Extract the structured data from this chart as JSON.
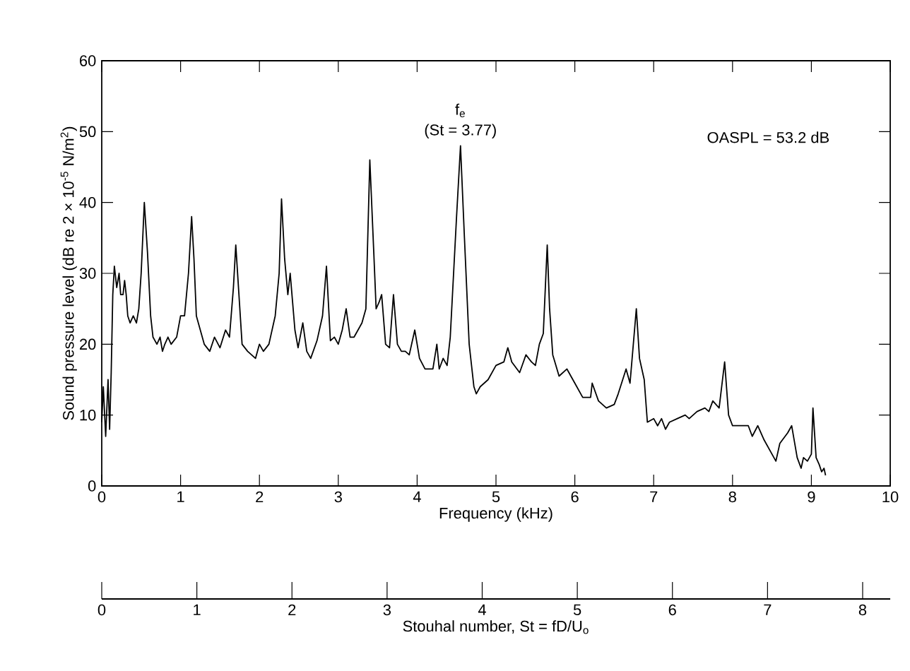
{
  "chart_data": {
    "type": "line",
    "xlabel": "Frequency (kHz)",
    "ylabel": "Sound pressure level (dB re 2 × 10$^{-5}$ N/m$^{2}$)",
    "x2label": "Stouhal number, St = fD/U$_{o}$",
    "xlim": [
      0,
      10
    ],
    "ylim": [
      0,
      60
    ],
    "xticks": [
      0,
      1,
      2,
      3,
      4,
      5,
      6,
      7,
      8,
      9,
      10
    ],
    "yticks": [
      0,
      10,
      20,
      30,
      40,
      50,
      60
    ],
    "x2lim": [
      0,
      8.29
    ],
    "x2ticks": [
      0,
      1,
      2,
      3,
      4,
      5,
      6,
      7,
      8
    ],
    "grid": false,
    "marker": "none",
    "line_style": "solid",
    "annotations": [
      {
        "text": "f$_{e}$",
        "x": 4.55,
        "y": 48
      },
      {
        "text": "(St = 3.77)",
        "x": 4.55,
        "y": 48
      },
      "OASPL = 53.2 dB"
    ],
    "series": [
      {
        "color": "#000000",
        "x": [
          0.0,
          0.02,
          0.05,
          0.08,
          0.1,
          0.12,
          0.14,
          0.16,
          0.19,
          0.22,
          0.24,
          0.27,
          0.29,
          0.31,
          0.33,
          0.36,
          0.4,
          0.44,
          0.47,
          0.5,
          0.54,
          0.58,
          0.62,
          0.65,
          0.7,
          0.74,
          0.77,
          0.8,
          0.84,
          0.88,
          0.95,
          1.0,
          1.05,
          1.1,
          1.14,
          1.17,
          1.2,
          1.25,
          1.3,
          1.37,
          1.43,
          1.5,
          1.57,
          1.62,
          1.67,
          1.7,
          1.74,
          1.78,
          1.85,
          1.95,
          2.0,
          2.05,
          2.12,
          2.2,
          2.25,
          2.28,
          2.32,
          2.36,
          2.39,
          2.42,
          2.45,
          2.49,
          2.55,
          2.6,
          2.65,
          2.73,
          2.8,
          2.85,
          2.9,
          2.95,
          3.0,
          3.05,
          3.1,
          3.15,
          3.2,
          3.3,
          3.35,
          3.4,
          3.45,
          3.48,
          3.52,
          3.55,
          3.6,
          3.65,
          3.7,
          3.75,
          3.8,
          3.85,
          3.9,
          3.97,
          4.03,
          4.1,
          4.2,
          4.25,
          4.28,
          4.33,
          4.38,
          4.42,
          4.5,
          4.55,
          4.6,
          4.66,
          4.72,
          4.75,
          4.8,
          4.9,
          5.0,
          5.1,
          5.15,
          5.2,
          5.3,
          5.38,
          5.45,
          5.5,
          5.55,
          5.6,
          5.65,
          5.68,
          5.72,
          5.8,
          5.9,
          6.0,
          6.1,
          6.2,
          6.22,
          6.3,
          6.4,
          6.5,
          6.55,
          6.65,
          6.7,
          6.78,
          6.82,
          6.88,
          6.92,
          7.0,
          7.05,
          7.1,
          7.15,
          7.2,
          7.3,
          7.4,
          7.45,
          7.55,
          7.65,
          7.7,
          7.75,
          7.83,
          7.9,
          7.95,
          8.0,
          8.1,
          8.2,
          8.25,
          8.32,
          8.4,
          8.5,
          8.55,
          8.6,
          8.7,
          8.75,
          8.82,
          8.87,
          8.9,
          8.95,
          9.0,
          9.02,
          9.06,
          9.1,
          9.13,
          9.16,
          9.18
        ],
        "values": [
          9,
          14,
          7,
          15,
          8,
          16,
          27,
          31,
          28,
          30,
          27,
          27,
          29,
          27,
          24,
          23,
          24,
          23,
          25,
          30,
          40,
          33,
          24,
          21,
          20,
          21,
          19,
          20,
          21,
          20,
          21,
          24,
          24,
          30,
          38,
          32,
          24,
          22,
          20,
          19,
          21,
          19.5,
          22,
          21,
          28,
          34,
          27,
          20,
          19,
          18,
          20,
          19,
          20,
          24,
          30,
          40.5,
          32,
          27,
          30,
          26,
          22,
          19.5,
          23,
          19,
          18,
          20.5,
          24,
          31,
          20.5,
          21,
          20,
          22,
          25,
          21,
          21,
          23,
          25,
          46,
          33,
          25,
          26,
          27,
          20,
          19.5,
          27,
          20,
          19,
          19,
          18.5,
          22,
          18,
          16.5,
          16.5,
          20,
          16.5,
          18,
          17,
          21,
          38,
          48,
          35,
          20,
          14,
          13,
          14,
          15,
          17,
          17.5,
          19.5,
          17.5,
          16,
          18.5,
          17.5,
          17,
          20,
          21.5,
          34,
          25,
          18.5,
          15.5,
          16.5,
          14.5,
          12.5,
          12.5,
          14.5,
          12,
          11,
          11.5,
          13,
          16.5,
          14.5,
          25,
          18,
          15,
          9,
          9.5,
          8.5,
          9.5,
          8,
          9,
          9.5,
          10,
          9.5,
          10.5,
          11,
          10.5,
          12,
          11,
          17.5,
          10,
          8.5,
          8.5,
          8.5,
          7,
          8.5,
          6.5,
          4.5,
          3.5,
          6,
          7.5,
          8.5,
          4,
          2.5,
          4,
          3.5,
          4.5,
          11,
          4,
          3,
          2,
          2.5,
          1.5
        ]
      }
    ]
  }
}
